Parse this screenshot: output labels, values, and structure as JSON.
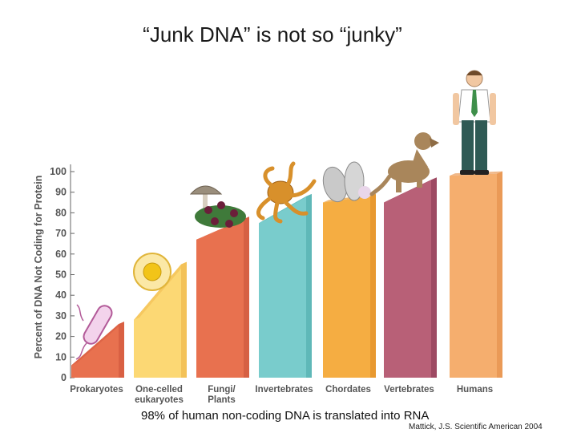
{
  "slide": {
    "title": "“Junk DNA” is not so “junky”",
    "caption": "98% of human non-coding DNA is translated into RNA",
    "citation": "Mattick, J.S. Scientific American 2004"
  },
  "chart_data": {
    "type": "bar",
    "ylabel": "Percent of DNA Not Coding for Protein",
    "ylim": [
      0,
      100
    ],
    "yticks": [
      0,
      10,
      20,
      30,
      40,
      50,
      60,
      70,
      80,
      90,
      100
    ],
    "grid": false,
    "categories": [
      "Prokaryotes",
      "One-celled eukaryotes",
      "Fungi/ Plants",
      "Invertebrates",
      "Chordates",
      "Vertebrates",
      "Humans"
    ],
    "category_lines": [
      [
        "Prokaryotes"
      ],
      [
        "One-celled",
        "eukaryotes"
      ],
      [
        "Fungi/",
        "Plants"
      ],
      [
        "Invertebrates"
      ],
      [
        "Chordates"
      ],
      [
        "Vertebrates"
      ],
      [
        "Humans"
      ]
    ],
    "range_low": [
      6,
      28,
      67,
      75,
      85,
      85,
      98
    ],
    "range_high": [
      26,
      55,
      77,
      88,
      88,
      96,
      99
    ],
    "colors": [
      "#e8714f",
      "#fcd874",
      "#e8714f",
      "#79cccc",
      "#f5ad42",
      "#b86077",
      "#f5ae6e"
    ],
    "shade_colors": [
      "#d96043",
      "#f3c258",
      "#d66043",
      "#5fb8b8",
      "#e89930",
      "#9e4a63",
      "#ea9a57"
    ],
    "icons": [
      "bacterium-icon",
      "cell-icon",
      "mushroom-flower-icon",
      "octopus-icon",
      "sea-squirt-icon",
      "dog-icon",
      "human-icon"
    ]
  }
}
